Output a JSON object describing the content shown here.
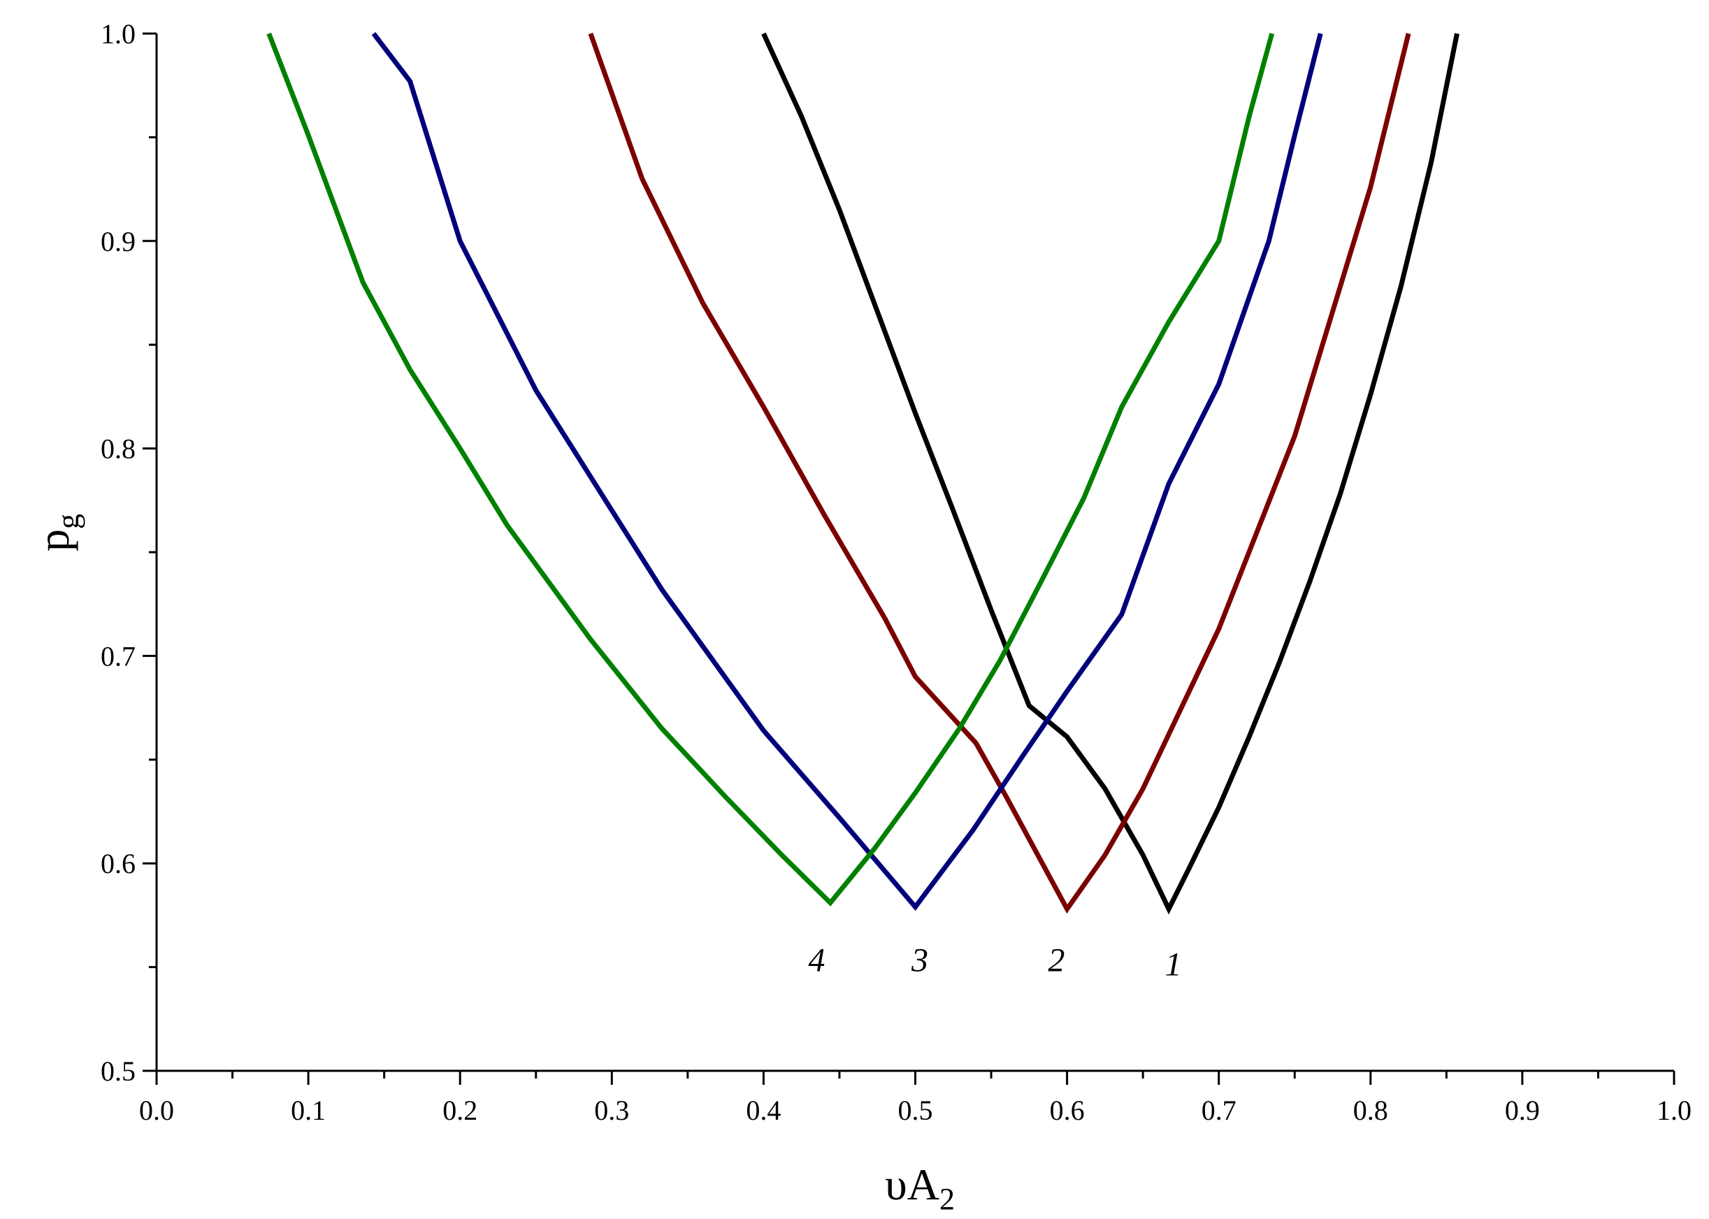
{
  "chart_data": {
    "type": "line",
    "xlabel": {
      "main": "υA",
      "sub": "2"
    },
    "ylabel": {
      "main": "p",
      "sub": "g"
    },
    "xlim": [
      0.0,
      1.0
    ],
    "ylim": [
      0.5,
      1.0
    ],
    "xticks": [
      "0.0",
      "0.1",
      "0.2",
      "0.3",
      "0.4",
      "0.5",
      "0.6",
      "0.7",
      "0.8",
      "0.9",
      "1.0"
    ],
    "yticks": [
      "0.5",
      "0.6",
      "0.7",
      "0.8",
      "0.9",
      "1.0"
    ],
    "grid": false,
    "legend": "none",
    "series": [
      {
        "name": "1",
        "color": "#000000",
        "x": [
          0.4,
          0.425,
          0.45,
          0.475,
          0.5,
          0.525,
          0.55,
          0.575,
          0.6,
          0.625,
          0.65,
          0.667,
          0.68,
          0.7,
          0.72,
          0.74,
          0.76,
          0.78,
          0.8,
          0.82,
          0.84,
          0.857
        ],
        "y": [
          1.0,
          0.96,
          0.915,
          0.866,
          0.817,
          0.77,
          0.722,
          0.676,
          0.661,
          0.636,
          0.604,
          0.578,
          0.597,
          0.627,
          0.661,
          0.697,
          0.736,
          0.778,
          0.826,
          0.878,
          0.938,
          1.0
        ]
      },
      {
        "name": "2",
        "color": "#7b0000",
        "x": [
          0.286,
          0.32,
          0.36,
          0.4,
          0.44,
          0.48,
          0.5,
          0.54,
          0.56,
          0.58,
          0.6,
          0.625,
          0.65,
          0.7,
          0.75,
          0.8,
          0.825
        ],
        "y": [
          1.0,
          0.93,
          0.87,
          0.82,
          0.768,
          0.718,
          0.69,
          0.658,
          0.632,
          0.605,
          0.578,
          0.604,
          0.636,
          0.713,
          0.806,
          0.926,
          1.0
        ]
      },
      {
        "name": "3",
        "color": "#00007b",
        "x": [
          0.143,
          0.167,
          0.2,
          0.25,
          0.333,
          0.4,
          0.45,
          0.5,
          0.538,
          0.571,
          0.6,
          0.636,
          0.667,
          0.7,
          0.733,
          0.75,
          0.767
        ],
        "y": [
          1.0,
          0.977,
          0.9,
          0.828,
          0.732,
          0.664,
          0.622,
          0.579,
          0.616,
          0.652,
          0.683,
          0.72,
          0.783,
          0.831,
          0.9,
          0.951,
          1.0
        ]
      },
      {
        "name": "4",
        "color": "#008000",
        "x": [
          0.074,
          0.1,
          0.136,
          0.167,
          0.2,
          0.231,
          0.286,
          0.333,
          0.375,
          0.412,
          0.444,
          0.473,
          0.5,
          0.529,
          0.556,
          0.583,
          0.611,
          0.636,
          0.667,
          0.7,
          0.72,
          0.735
        ],
        "y": [
          1.0,
          0.951,
          0.88,
          0.838,
          0.8,
          0.763,
          0.708,
          0.665,
          0.632,
          0.604,
          0.581,
          0.607,
          0.634,
          0.665,
          0.698,
          0.736,
          0.776,
          0.82,
          0.861,
          0.9,
          0.96,
          1.0
        ]
      }
    ],
    "annotations": [
      {
        "text": "4",
        "x": 0.435,
        "y": 0.548
      },
      {
        "text": "3",
        "x": 0.503,
        "y": 0.548
      },
      {
        "text": "2",
        "x": 0.593,
        "y": 0.548
      },
      {
        "text": "1",
        "x": 0.67,
        "y": 0.546
      }
    ]
  }
}
